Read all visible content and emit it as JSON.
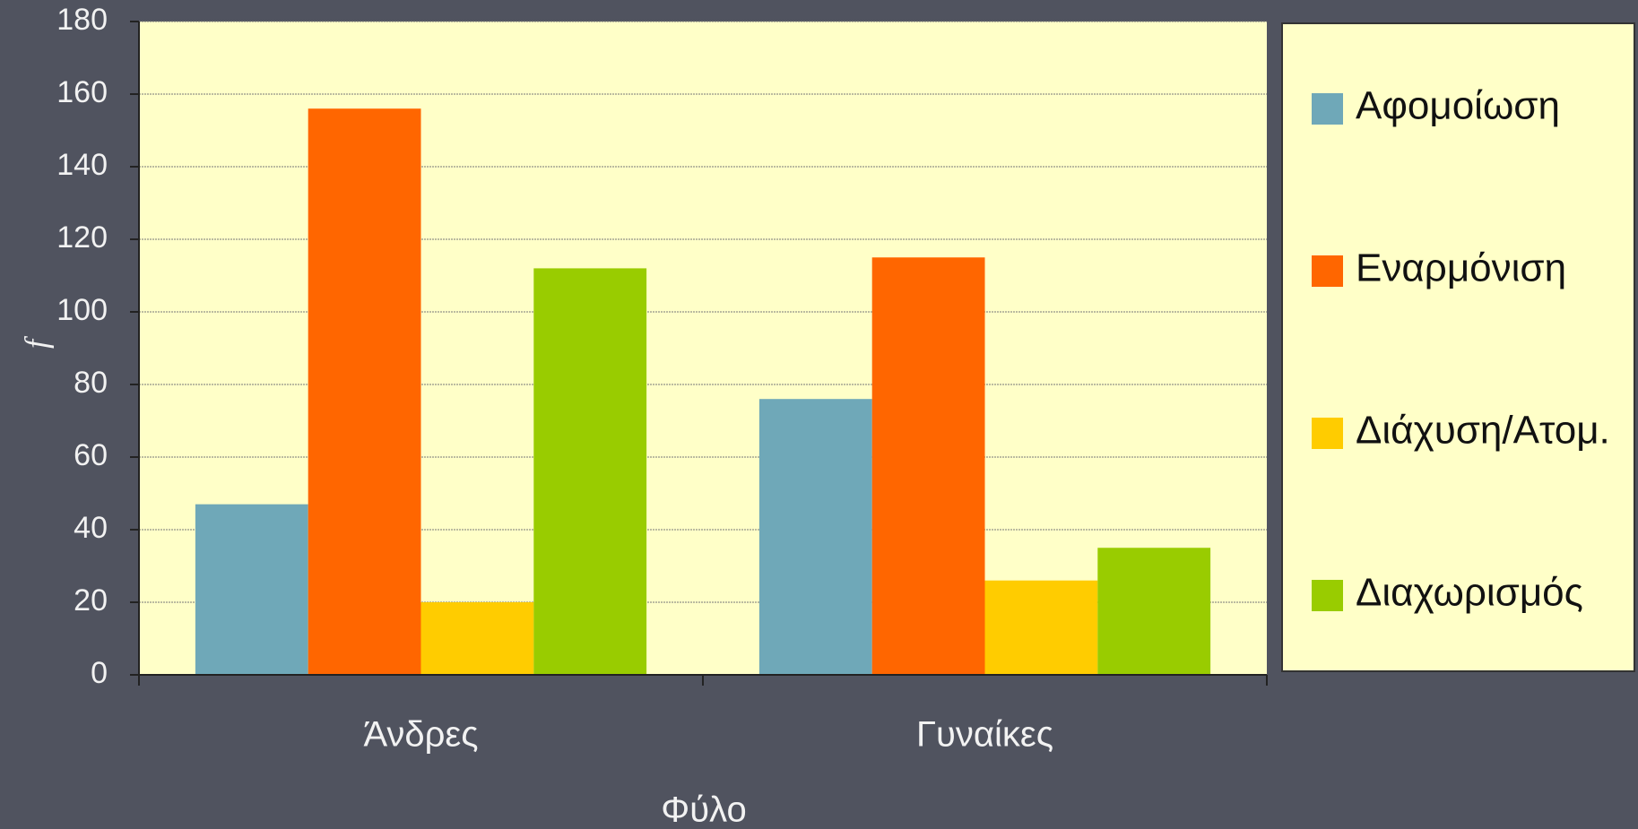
{
  "chart_data": {
    "type": "bar",
    "categories": [
      "Άνδρες",
      "Γυναίκες"
    ],
    "series": [
      {
        "name": "Αφομοίωση",
        "color": "#6fa8b8",
        "values": [
          47,
          76
        ]
      },
      {
        "name": "Εναρμόνιση",
        "color": "#ff6600",
        "values": [
          156,
          115
        ]
      },
      {
        "name": "Διάχυση/Ατομ.",
        "color": "#ffcc00",
        "values": [
          20,
          26
        ]
      },
      {
        "name": "Διαχωρισμός",
        "color": "#99cc00",
        "values": [
          112,
          35
        ]
      }
    ],
    "xlabel": "Φύλο",
    "ylabel": "f",
    "ylim": [
      0,
      180
    ],
    "yticks": [
      0,
      20,
      40,
      60,
      80,
      100,
      120,
      140,
      160,
      180
    ],
    "grid": true,
    "legend": "right"
  }
}
